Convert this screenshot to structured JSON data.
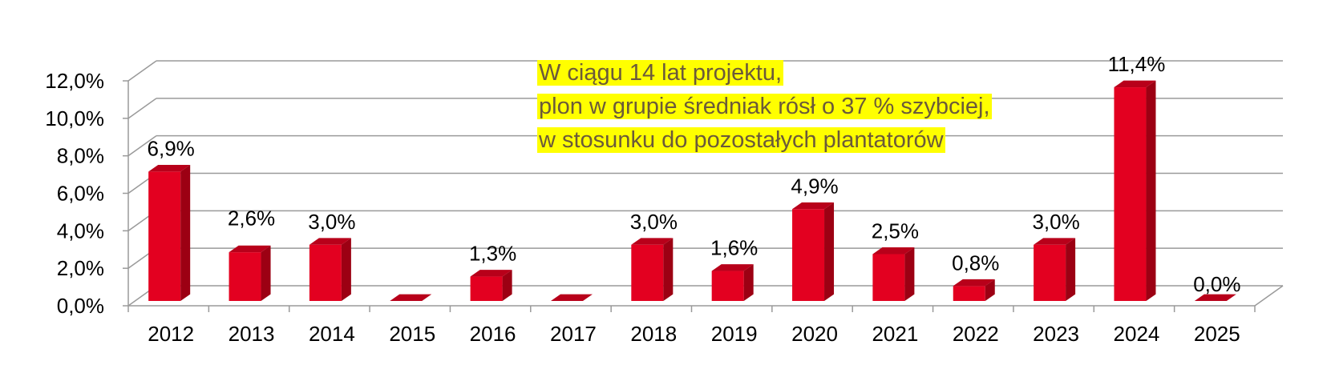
{
  "chart_data": {
    "type": "bar",
    "style": "3d-column",
    "title": "",
    "xlabel": "",
    "ylabel": "",
    "categories": [
      "2012",
      "2013",
      "2014",
      "2015",
      "2016",
      "2017",
      "2018",
      "2019",
      "2020",
      "2021",
      "2022",
      "2023",
      "2024",
      "2025"
    ],
    "values": [
      6.9,
      2.6,
      3.0,
      0.0,
      1.3,
      0.0,
      3.0,
      1.6,
      4.9,
      2.5,
      0.8,
      3.0,
      11.4,
      0.0
    ],
    "data_labels": [
      "6,9%",
      "2,6%",
      "3,0%",
      "",
      "1,3%",
      "",
      "3,0%",
      "1,6%",
      "4,9%",
      "2,5%",
      "0,8%",
      "3,0%",
      "11,4%",
      "0,0%"
    ],
    "y_ticks": [
      "0,0%",
      "2,0%",
      "4,0%",
      "6,0%",
      "8,0%",
      "10,0%",
      "12,0%"
    ],
    "ylim": [
      0,
      12
    ],
    "grid": true,
    "legend": "none",
    "colors": {
      "bar_front": "#e30020",
      "bar_side": "#9c0013",
      "bar_top": "#b8001a",
      "grid": "#9a9a9a"
    },
    "annotation": {
      "lines": [
        "W ciągu 14 lat projektu,",
        "plon w grupie średniak rósł o 37 % szybciej,",
        "w stosunku do pozostałych plantatorów"
      ],
      "highlight": "#ffff00"
    }
  }
}
